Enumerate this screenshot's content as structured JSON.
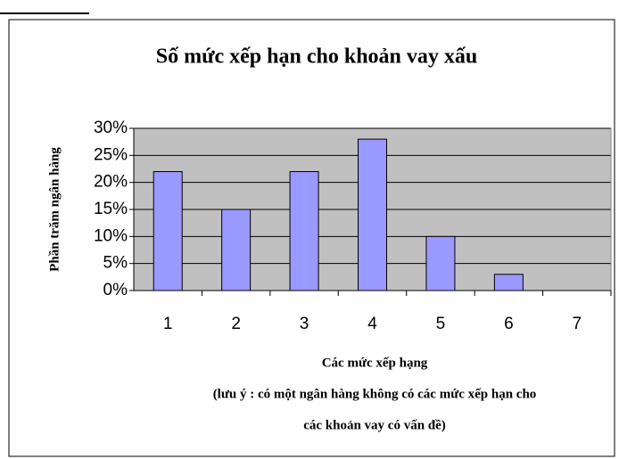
{
  "chart_data": {
    "type": "bar",
    "title": "Số mức xếp hạn cho khoản vay xấu",
    "ylabel": "Phần trăm ngân hàng",
    "xlabel": "Các mức xếp hạng",
    "note": [
      "(lưu ý : có một ngân hàng không có các mức xếp hạn cho",
      "các khoản vay có vấn đề)"
    ],
    "categories": [
      "1",
      "2",
      "3",
      "4",
      "5",
      "6",
      "7"
    ],
    "values": [
      22,
      15,
      22,
      28,
      10,
      3,
      0
    ],
    "color": "#9999ff",
    "ylim": [
      0,
      30
    ],
    "yticks": [
      {
        "value": 0,
        "label": "0%"
      },
      {
        "value": 5,
        "label": "5%"
      },
      {
        "value": 10,
        "label": "10%"
      },
      {
        "value": 15,
        "label": "15%"
      },
      {
        "value": 20,
        "label": "20%"
      },
      {
        "value": 25,
        "label": "25%"
      },
      {
        "value": 30,
        "label": "30%"
      }
    ],
    "grid": true
  }
}
